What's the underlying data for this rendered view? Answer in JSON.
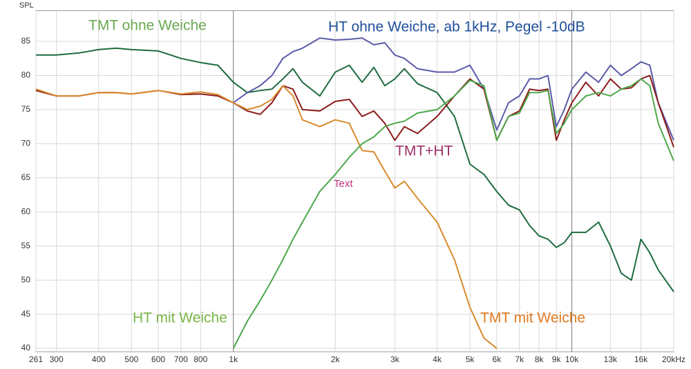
{
  "chart_data": {
    "type": "line",
    "y_label": "SPL",
    "log_x": true,
    "grid": true,
    "xlim": [
      261,
      20000
    ],
    "ylim": [
      39.5,
      89.5
    ],
    "xticks": [
      261,
      300,
      400,
      500,
      600,
      700,
      800,
      {
        "value": 1000,
        "label": "1k"
      },
      {
        "value": 2000,
        "label": "2k"
      },
      {
        "value": 3000,
        "label": "3k"
      },
      {
        "value": 4000,
        "label": "4k"
      },
      {
        "value": 5000,
        "label": "5k"
      },
      {
        "value": 6000,
        "label": "6k"
      },
      {
        "value": 7000,
        "label": "7k"
      },
      {
        "value": 8000,
        "label": "8k"
      },
      {
        "value": 9000,
        "label": "9k"
      },
      {
        "value": 10000,
        "label": "10k"
      },
      {
        "value": 13000,
        "label": "13k"
      },
      {
        "value": 16000,
        "label": "16k"
      },
      {
        "value": 20000,
        "label": "20kHz"
      }
    ],
    "yticks": [
      40,
      45,
      50,
      55,
      60,
      65,
      70,
      75,
      80,
      85
    ],
    "x": [
      261,
      300,
      350,
      400,
      450,
      500,
      600,
      700,
      800,
      900,
      1000,
      1100,
      1200,
      1300,
      1400,
      1500,
      1600,
      1800,
      2000,
      2200,
      2400,
      2600,
      2800,
      3000,
      3200,
      3500,
      4000,
      4500,
      5000,
      5500,
      6000,
      6500,
      7000,
      7500,
      8000,
      8500,
      9000,
      9500,
      10000,
      11000,
      12000,
      13000,
      14000,
      15000,
      16000,
      17000,
      18000,
      20000
    ],
    "series": [
      {
        "name": "TMT ohne Weiche",
        "color": "#1d6b3f",
        "values": [
          83,
          83,
          83.3,
          83.8,
          84,
          83.8,
          83.6,
          82.5,
          81.9,
          81.5,
          79,
          77.5,
          77.8,
          78,
          79.5,
          81,
          79,
          77,
          80.5,
          81.5,
          79,
          81.2,
          78.5,
          79.5,
          81,
          78.8,
          77.5,
          74,
          67,
          65.5,
          63,
          61,
          60.3,
          58,
          56.5,
          56,
          54.8,
          55.5,
          57,
          57,
          58.5,
          55,
          51,
          50,
          56,
          54,
          51.5,
          48.3
        ]
      },
      {
        "name": "HT ohne Weiche, ab 1kHz, Pegel -10dB",
        "color": "#5a5aa8",
        "values": [
          null,
          null,
          null,
          null,
          null,
          null,
          null,
          null,
          null,
          null,
          76,
          77.5,
          78.5,
          80,
          82.5,
          83.5,
          84,
          85.5,
          85.2,
          85.3,
          85.5,
          84.5,
          84.8,
          83,
          82.5,
          81,
          80.5,
          80.5,
          81.5,
          78,
          72,
          76,
          77,
          79.5,
          79.5,
          80,
          72.5,
          75,
          78,
          80.5,
          79,
          81.5,
          80,
          81,
          82,
          81.5,
          76,
          70.5
        ]
      },
      {
        "name": "TMT+HT",
        "color": "#8b1a1a",
        "values": [
          77.8,
          77,
          77,
          77.5,
          77.5,
          77.3,
          77.8,
          77.2,
          77.3,
          77,
          76,
          74.8,
          74.3,
          76,
          78.5,
          78,
          75,
          74.8,
          76.2,
          76.5,
          74,
          74.8,
          73,
          70.5,
          72.5,
          71.5,
          74,
          77,
          79.5,
          78,
          70.5,
          74,
          74.8,
          78,
          77.8,
          78,
          70.5,
          73.5,
          76,
          79,
          77,
          79.5,
          78,
          78.2,
          79.5,
          80,
          76,
          69.5
        ]
      },
      {
        "name": "TMT mit Weiche",
        "color": "#d98a2b",
        "values": [
          78,
          77,
          77,
          77.5,
          77.5,
          77.3,
          77.8,
          77.3,
          77.6,
          77.2,
          76,
          75,
          75.5,
          76.5,
          78.5,
          77,
          73.5,
          72.5,
          73.5,
          73,
          69,
          68.8,
          66,
          63.5,
          64.5,
          62,
          58.5,
          53,
          46,
          41.5,
          40,
          null,
          null,
          null,
          null,
          null,
          null,
          null,
          null,
          null,
          null,
          null,
          null,
          null,
          null,
          null,
          null,
          null
        ]
      },
      {
        "name": "HT mit Weiche",
        "color": "#4da84a",
        "values": [
          null,
          null,
          null,
          null,
          null,
          null,
          null,
          null,
          null,
          null,
          40,
          44,
          47,
          50,
          53,
          56,
          58.5,
          63,
          65.5,
          68,
          70,
          71,
          72.5,
          73,
          73.3,
          74.5,
          75,
          77,
          79.3,
          78.5,
          70.5,
          74,
          74.5,
          77.5,
          77.5,
          77.8,
          71.5,
          73,
          75,
          77,
          77.5,
          77,
          78,
          78.5,
          79.5,
          78.5,
          73,
          67.5
        ]
      }
    ],
    "annotations": [
      "Text"
    ]
  }
}
